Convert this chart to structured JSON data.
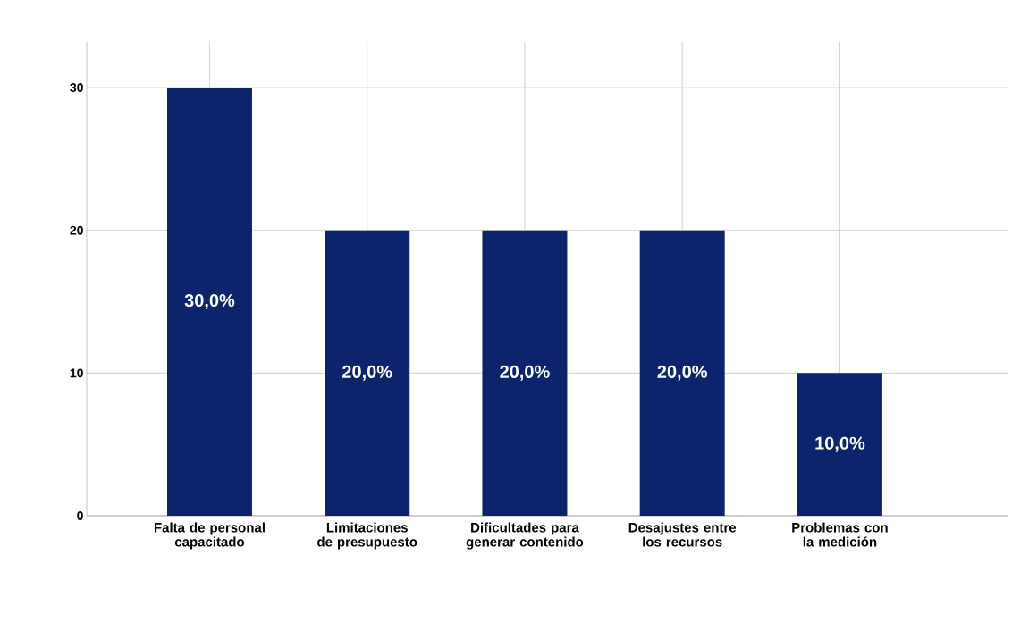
{
  "chart_data": {
    "type": "bar",
    "categories": [
      "Falta de personal capacitado",
      "Limitaciones de presupuesto",
      "Dificultades para generar contenido",
      "Desajustes entre los recursos",
      "Problemas con la medición"
    ],
    "values": [
      30,
      20,
      20,
      20,
      10
    ],
    "value_labels": [
      "30,0%",
      "20,0%",
      "20,0%",
      "20,0%",
      "10,0%"
    ],
    "color": "#0b246b",
    "ylim": [
      0,
      33.2
    ],
    "yticks": [
      0,
      10,
      20,
      30
    ],
    "grid": true
  }
}
